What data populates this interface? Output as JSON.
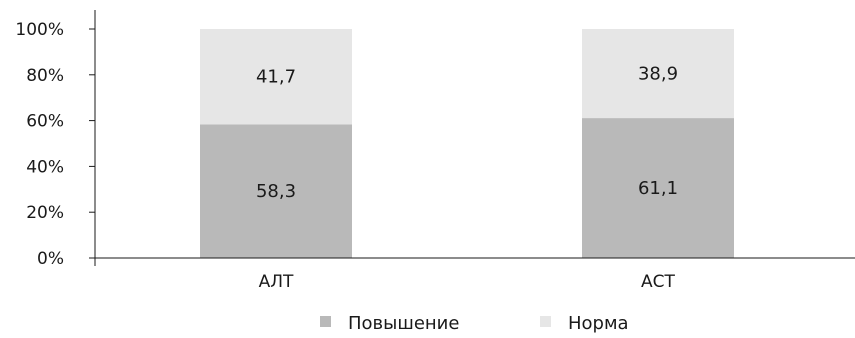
{
  "chart_data": {
    "type": "bar",
    "stacked": true,
    "categories": [
      "АЛТ",
      "АСТ"
    ],
    "series": [
      {
        "name": "Повышение",
        "values": [
          58.3,
          61.1
        ],
        "labels": [
          "58,3",
          "61,1"
        ],
        "color": "#b9b9b9"
      },
      {
        "name": "Норма",
        "values": [
          41.7,
          38.9
        ],
        "labels": [
          "41,7",
          "38,9"
        ],
        "color": "#e6e6e6"
      }
    ],
    "ylim": [
      0,
      100
    ],
    "yticks": [
      0,
      20,
      40,
      60,
      80,
      100
    ],
    "ytick_labels": [
      "0%",
      "20%",
      "40%",
      "60%",
      "80%",
      "100%"
    ],
    "grid": false,
    "legend_position": "bottom"
  }
}
